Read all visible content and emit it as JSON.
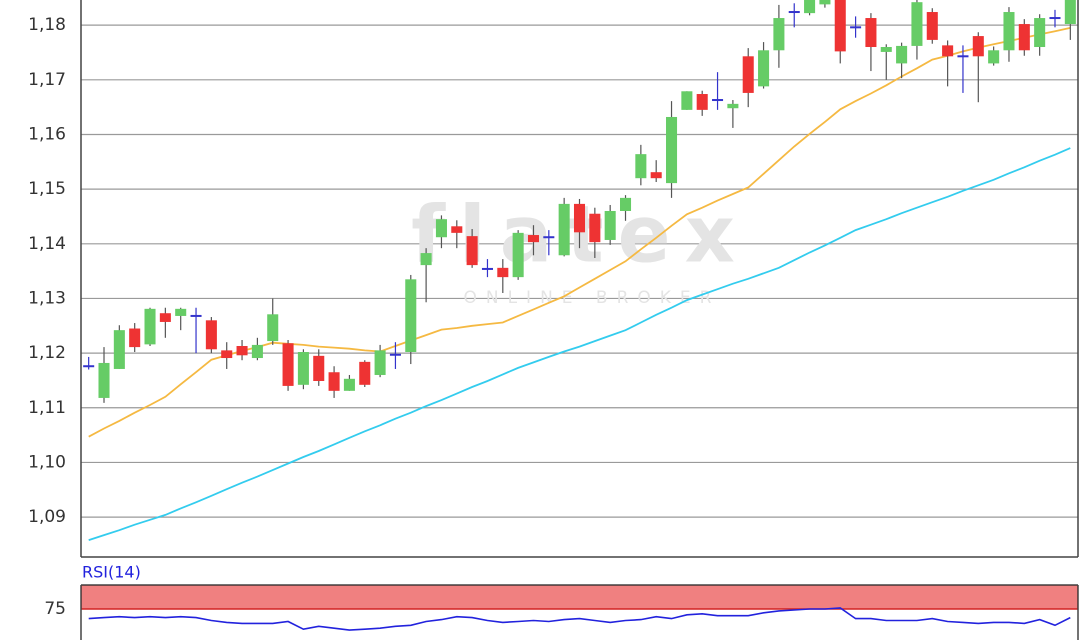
{
  "chart_data": [
    {
      "type": "candlestick",
      "watermark": "flatex",
      "watermark_sub": "ONLINE BROKER",
      "open": [
        1.1176,
        1.1118,
        1.1171,
        1.1245,
        1.1216,
        1.1273,
        1.1268,
        1.1268,
        1.126,
        1.1205,
        1.1213,
        1.1191,
        1.1222,
        1.1218,
        1.1142,
        1.1195,
        1.1165,
        1.1131,
        1.1184,
        1.116,
        1.1197,
        1.1202,
        1.1361,
        1.1412,
        1.1432,
        1.1414,
        1.1354,
        1.1356,
        1.1339,
        1.1416,
        1.1412,
        1.1379,
        1.1473,
        1.1455,
        1.1407,
        1.146,
        1.152,
        1.1531,
        1.1511,
        1.1645,
        1.1674,
        1.1663,
        1.1648,
        1.1743,
        1.1688,
        1.1754,
        1.1824,
        1.1822,
        1.1838,
        1.185,
        1.1796,
        1.1813,
        1.1751,
        1.173,
        1.1762,
        1.1824,
        1.1763,
        1.1743,
        1.178,
        1.173,
        1.1754,
        1.1802,
        1.176,
        1.1813,
        1.1802
      ],
      "high": [
        1.1193,
        1.1211,
        1.1251,
        1.1255,
        1.1283,
        1.1283,
        1.1283,
        1.1283,
        1.1266,
        1.122,
        1.1224,
        1.1228,
        1.13,
        1.1224,
        1.1207,
        1.1207,
        1.1176,
        1.116,
        1.1187,
        1.1215,
        1.122,
        1.1343,
        1.1392,
        1.1452,
        1.1443,
        1.1427,
        1.1372,
        1.1372,
        1.1425,
        1.1434,
        1.1425,
        1.1484,
        1.1482,
        1.1466,
        1.1471,
        1.1489,
        1.1581,
        1.1553,
        1.1661,
        1.1679,
        1.168,
        1.1714,
        1.1663,
        1.1758,
        1.1769,
        1.1837,
        1.184,
        1.186,
        1.186,
        1.186,
        1.1816,
        1.1822,
        1.1765,
        1.1768,
        1.1846,
        1.1831,
        1.1772,
        1.1763,
        1.1787,
        1.1761,
        1.1833,
        1.1811,
        1.182,
        1.1828,
        1.186
      ],
      "low": [
        1.117,
        1.1109,
        1.1171,
        1.1202,
        1.1213,
        1.1228,
        1.1242,
        1.12,
        1.12,
        1.1171,
        1.1187,
        1.1187,
        1.1215,
        1.1131,
        1.1134,
        1.114,
        1.1118,
        1.1131,
        1.1138,
        1.1156,
        1.1171,
        1.118,
        1.1293,
        1.1392,
        1.1392,
        1.1356,
        1.1339,
        1.131,
        1.1334,
        1.1379,
        1.1379,
        1.1377,
        1.1392,
        1.1374,
        1.1398,
        1.1442,
        1.1507,
        1.1513,
        1.1484,
        1.1645,
        1.1634,
        1.1645,
        1.1612,
        1.165,
        1.1684,
        1.1722,
        1.1796,
        1.1818,
        1.1832,
        1.173,
        1.1777,
        1.1716,
        1.17,
        1.1703,
        1.1737,
        1.1766,
        1.1688,
        1.1676,
        1.1659,
        1.1726,
        1.1733,
        1.1744,
        1.1744,
        1.1796,
        1.1773
      ],
      "close": [
        1.1176,
        1.1182,
        1.1242,
        1.1211,
        1.1281,
        1.1257,
        1.1281,
        1.1268,
        1.1207,
        1.1191,
        1.1196,
        1.1215,
        1.1271,
        1.114,
        1.1202,
        1.1149,
        1.1131,
        1.1153,
        1.1142,
        1.1205,
        1.1197,
        1.1335,
        1.1383,
        1.1445,
        1.142,
        1.1361,
        1.1354,
        1.1339,
        1.142,
        1.1403,
        1.1412,
        1.1473,
        1.1421,
        1.1403,
        1.146,
        1.1484,
        1.1564,
        1.152,
        1.1632,
        1.1679,
        1.1645,
        1.1663,
        1.1656,
        1.1676,
        1.1754,
        1.1813,
        1.1824,
        1.1855,
        1.1846,
        1.1752,
        1.1796,
        1.176,
        1.176,
        1.1762,
        1.1842,
        1.1773,
        1.1743,
        1.1743,
        1.1743,
        1.1754,
        1.1824,
        1.1754,
        1.1813,
        1.1813,
        1.186
      ],
      "up_color": "#66cc66",
      "down_color": "#ee3333",
      "doji_color": "#3333cc",
      "series": [
        {
          "color": "#f5b942",
          "values": [
            1.1047,
            1.1062,
            1.1076,
            1.1091,
            1.1105,
            1.112,
            1.1143,
            1.1165,
            1.1188,
            1.1196,
            1.1204,
            1.1211,
            1.1219,
            1.1217,
            1.1215,
            1.1212,
            1.121,
            1.1208,
            1.1205,
            1.1203,
            1.1213,
            1.1223,
            1.1233,
            1.1243,
            1.1246,
            1.125,
            1.1253,
            1.1256,
            1.1268,
            1.128,
            1.1292,
            1.1304,
            1.132,
            1.1336,
            1.1352,
            1.1368,
            1.139,
            1.1411,
            1.1433,
            1.1454,
            1.1466,
            1.1479,
            1.1491,
            1.1503,
            1.1528,
            1.1553,
            1.1578,
            1.1601,
            1.1623,
            1.1646,
            1.1661,
            1.1675,
            1.169,
            1.1706,
            1.1721,
            1.1737,
            1.1744,
            1.1752,
            1.1759,
            1.1765,
            1.1771,
            1.1777,
            1.1783,
            1.1789,
            1.1795
          ]
        },
        {
          "color": "#33ccee",
          "values": [
            1.0858,
            1.0867,
            1.0876,
            1.0886,
            1.0895,
            1.0904,
            1.0916,
            1.0927,
            1.0939,
            1.0951,
            1.0963,
            1.0974,
            1.0986,
            1.0998,
            1.101,
            1.1021,
            1.1033,
            1.1045,
            1.1057,
            1.1068,
            1.108,
            1.1091,
            1.1103,
            1.1114,
            1.1126,
            1.1138,
            1.1149,
            1.1161,
            1.1173,
            1.1183,
            1.1193,
            1.1203,
            1.1212,
            1.1222,
            1.1232,
            1.1242,
            1.1256,
            1.127,
            1.1283,
            1.1297,
            1.1307,
            1.1317,
            1.1327,
            1.1336,
            1.1346,
            1.1356,
            1.137,
            1.1384,
            1.1397,
            1.1411,
            1.1425,
            1.1435,
            1.1445,
            1.1456,
            1.1466,
            1.1476,
            1.1486,
            1.1497,
            1.1507,
            1.1517,
            1.1529,
            1.154,
            1.1552,
            1.1563,
            1.1575
          ]
        }
      ],
      "ylim": [
        1.0827,
        1.1846
      ],
      "yticks": [
        {
          "value": 1.09,
          "label": "1,09"
        },
        {
          "value": 1.1,
          "label": "1,10"
        },
        {
          "value": 1.11,
          "label": "1,11"
        },
        {
          "value": 1.12,
          "label": "1,12"
        },
        {
          "value": 1.13,
          "label": "1,13"
        },
        {
          "value": 1.14,
          "label": "1,14"
        },
        {
          "value": 1.15,
          "label": "1,15"
        },
        {
          "value": 1.16,
          "label": "1,16"
        },
        {
          "value": 1.17,
          "label": "1,17"
        },
        {
          "value": 1.18,
          "label": "1,18"
        }
      ],
      "grid": true
    },
    {
      "type": "line",
      "title": "RSI(14)",
      "series": [
        {
          "color": "#2222dd",
          "values": [
            65,
            66,
            67,
            66,
            67,
            66,
            67,
            66,
            63,
            61,
            60,
            60,
            60,
            62,
            54,
            57,
            55,
            53,
            54,
            55,
            57,
            58,
            62,
            64,
            67,
            66,
            63,
            61,
            62,
            63,
            62,
            64,
            65,
            63,
            61,
            63,
            64,
            67,
            65,
            69,
            70,
            68,
            68,
            68,
            71,
            73,
            74,
            75,
            75,
            76,
            65,
            65,
            63,
            63,
            63,
            65,
            62,
            61,
            60,
            61,
            61,
            60,
            64,
            58,
            66
          ]
        }
      ],
      "band": [
        75,
        100
      ],
      "band_color": "#f08080",
      "ylim": [
        42.7,
        100
      ],
      "yticks": [
        75
      ],
      "grid": true
    }
  ]
}
